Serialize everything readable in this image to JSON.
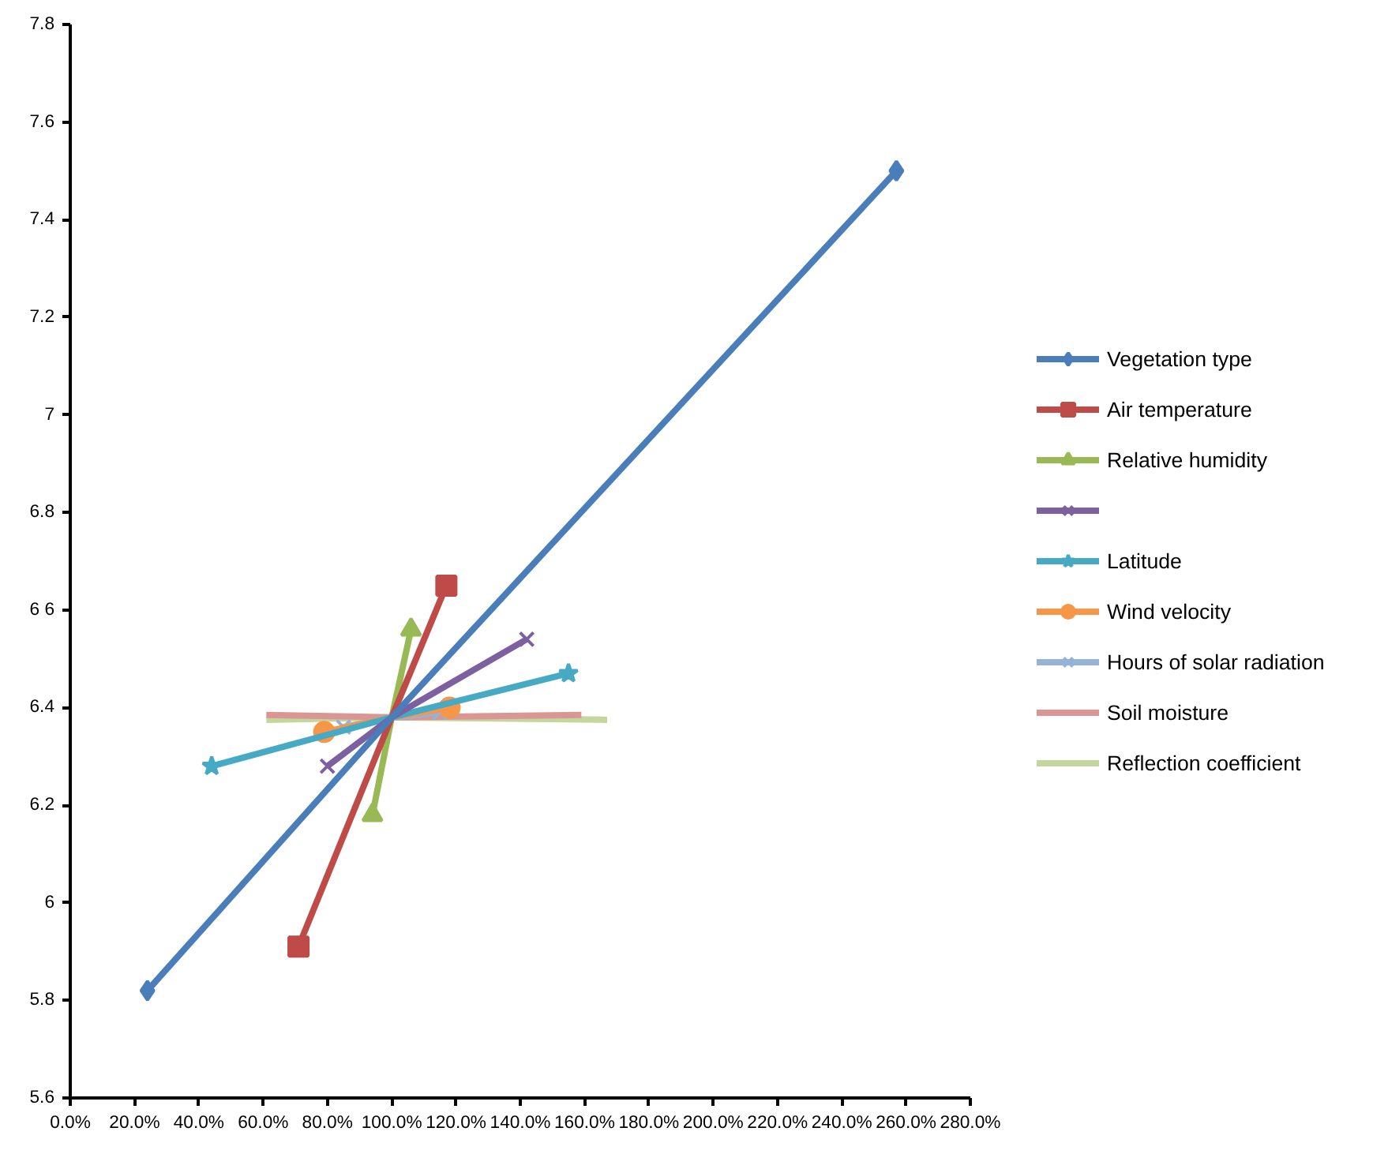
{
  "chart_data": {
    "type": "line",
    "legend": "right",
    "grid": false,
    "xlim": [
      0,
      2.8
    ],
    "xticks": [
      {
        "value": 0,
        "label": "0.0%"
      },
      {
        "value": 0.2,
        "label": "20.0%"
      },
      {
        "value": 0.4,
        "label": "40.0%"
      },
      {
        "value": 0.6,
        "label": "60.0%"
      },
      {
        "value": 0.8,
        "label": "80.0%"
      },
      {
        "value": 1.0,
        "label": "100.0%"
      },
      {
        "value": 1.2,
        "label": "120.0%"
      },
      {
        "value": 1.4,
        "label": "140.0%"
      },
      {
        "value": 1.6,
        "label": "160.0%"
      },
      {
        "value": 1.8,
        "label": "180.0%"
      },
      {
        "value": 2.0,
        "label": "200.0%"
      },
      {
        "value": 2.2,
        "label": "220.0%"
      },
      {
        "value": 2.4,
        "label": "240.0%"
      },
      {
        "value": 2.6,
        "label": "260.0%"
      },
      {
        "value": 2.8,
        "label": "280.0%"
      }
    ],
    "ylim": [
      5.6,
      7.8
    ],
    "yticks": [
      5.6,
      5.8,
      6,
      6.2,
      6.4,
      {
        "value": 6.6,
        "label": "6 6"
      },
      6.8,
      7,
      7.2,
      7.4,
      7.6,
      7.8
    ],
    "series": [
      {
        "name": "Vegetation type",
        "color": "#4a7ebb",
        "marker": "diamond",
        "x": [
          0.24,
          1.0,
          2.57
        ],
        "values": [
          5.82,
          6.38,
          7.5
        ]
      },
      {
        "name": "Air temperature",
        "color": "#be4b48",
        "marker": "square",
        "x": [
          0.71,
          1.0,
          1.17
        ],
        "values": [
          5.91,
          6.38,
          6.65
        ]
      },
      {
        "name": "Relative humidity",
        "color": "#98b954",
        "marker": "triangle",
        "x": [
          0.94,
          1.0,
          1.06
        ],
        "values": [
          6.18,
          6.38,
          6.56
        ]
      },
      {
        "color": "#7d60a0",
        "marker": "cross",
        "x": [
          0.8,
          1.0,
          1.42
        ],
        "values": [
          6.28,
          6.38,
          6.54
        ]
      },
      {
        "name": "Latitude",
        "color": "#46aac5",
        "marker": "star",
        "x": [
          0.44,
          1.0,
          1.55
        ],
        "values": [
          6.28,
          6.38,
          6.47
        ]
      },
      {
        "name": "Wind velocity",
        "color": "#f79646",
        "marker": "circle",
        "x": [
          0.79,
          1.0,
          1.18
        ],
        "values": [
          6.35,
          6.38,
          6.4
        ]
      },
      {
        "name": "Hours of solar radiation",
        "color": "#95b3d7",
        "marker": "cross",
        "x": [
          0.85,
          1.0,
          1.15
        ],
        "values": [
          6.36,
          6.38,
          6.39
        ]
      },
      {
        "name": "Soil moisture",
        "color": "#d99694",
        "marker": "none",
        "x": [
          0.61,
          1.0,
          1.59
        ],
        "values": [
          6.385,
          6.38,
          6.385
        ]
      },
      {
        "name": "Reflection coefficient",
        "color": "#c3d69b",
        "marker": "none",
        "x": [
          0.61,
          1.0,
          1.67
        ],
        "values": [
          6.375,
          6.38,
          6.375
        ]
      }
    ]
  }
}
